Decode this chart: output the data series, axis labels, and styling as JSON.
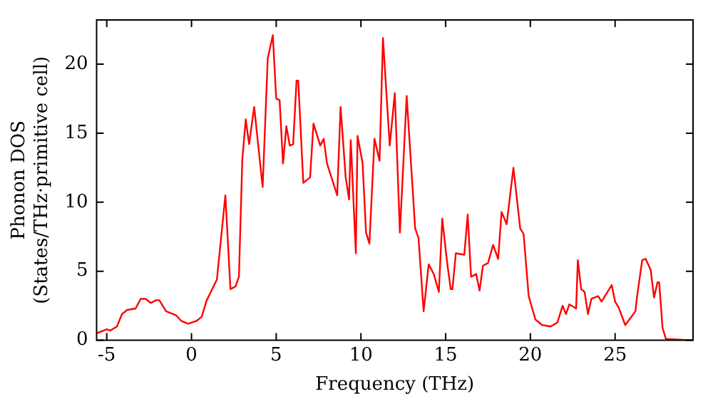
{
  "chart_data": {
    "type": "line",
    "xlabel": "Frequency (THz)",
    "ylabel": "Phonon DOS\n(States/THz·primitive cell)",
    "xlim": [
      -5.6,
      29.6
    ],
    "ylim": [
      0,
      23.2
    ],
    "xticks": [
      -5,
      0,
      5,
      10,
      15,
      20,
      25
    ],
    "yticks": [
      0,
      5,
      10,
      15,
      20
    ],
    "grid": false,
    "legend": false,
    "marker": "none",
    "line_style": "solid",
    "x": [
      -5.6,
      -5.0,
      -4.8,
      -4.4,
      -4.1,
      -3.8,
      -3.3,
      -3.0,
      -2.7,
      -2.4,
      -2.1,
      -1.9,
      -1.5,
      -0.9,
      -0.6,
      -0.2,
      0.3,
      0.6,
      0.9,
      1.1,
      1.5,
      2.0,
      2.3,
      2.6,
      2.8,
      3.0,
      3.2,
      3.4,
      3.7,
      4.2,
      4.5,
      4.8,
      5.0,
      5.2,
      5.4,
      5.6,
      5.8,
      6.0,
      6.2,
      6.3,
      6.6,
      7.0,
      7.2,
      7.6,
      7.8,
      8.0,
      8.6,
      8.8,
      9.1,
      9.3,
      9.4,
      9.7,
      9.8,
      10.1,
      10.3,
      10.5,
      10.8,
      11.1,
      11.3,
      11.7,
      12.0,
      12.3,
      12.7,
      13.2,
      13.4,
      13.7,
      14.0,
      14.3,
      14.6,
      14.8,
      15.1,
      15.3,
      15.4,
      15.6,
      16.1,
      16.3,
      16.5,
      16.8,
      17.0,
      17.2,
      17.5,
      17.8,
      18.1,
      18.3,
      18.6,
      19.0,
      19.4,
      19.6,
      19.9,
      20.3,
      20.7,
      21.2,
      21.6,
      21.9,
      22.1,
      22.3,
      22.7,
      22.8,
      23.0,
      23.2,
      23.4,
      23.6,
      24.0,
      24.2,
      24.8,
      25.0,
      25.2,
      25.6,
      26.2,
      26.3,
      26.6,
      26.8,
      27.1,
      27.3,
      27.5,
      27.6,
      27.8,
      28.0,
      29.5
    ],
    "series": [
      {
        "color": "#ff0000",
        "values": [
          0.5,
          0.8,
          0.7,
          1.0,
          1.9,
          2.2,
          2.3,
          3.0,
          3.0,
          2.7,
          2.9,
          2.9,
          2.1,
          1.8,
          1.4,
          1.2,
          1.4,
          1.7,
          2.9,
          3.4,
          4.4,
          10.5,
          3.7,
          3.9,
          4.6,
          13.1,
          16.0,
          14.2,
          16.9,
          11.1,
          20.4,
          22.1,
          17.5,
          17.4,
          12.8,
          15.5,
          14.1,
          14.2,
          18.8,
          18.8,
          11.4,
          11.8,
          15.7,
          14.1,
          14.6,
          12.8,
          10.5,
          16.9,
          11.8,
          10.2,
          14.5,
          6.3,
          14.8,
          12.8,
          7.8,
          7.0,
          14.6,
          13.0,
          21.9,
          14.1,
          17.9,
          7.8,
          17.7,
          8.1,
          7.4,
          2.1,
          5.5,
          4.8,
          3.5,
          8.8,
          5.5,
          3.7,
          3.7,
          6.3,
          6.2,
          9.1,
          4.6,
          4.8,
          3.6,
          5.4,
          5.6,
          6.9,
          5.9,
          9.3,
          8.4,
          12.5,
          8.1,
          7.7,
          3.2,
          1.5,
          1.1,
          1.0,
          1.3,
          2.5,
          1.9,
          2.6,
          2.3,
          5.8,
          3.7,
          3.5,
          1.9,
          3.0,
          3.2,
          2.8,
          4.0,
          2.8,
          2.4,
          1.1,
          2.1,
          3.2,
          5.8,
          5.9,
          5.1,
          3.1,
          4.2,
          4.2,
          0.9,
          0.1,
          0
        ]
      }
    ]
  }
}
